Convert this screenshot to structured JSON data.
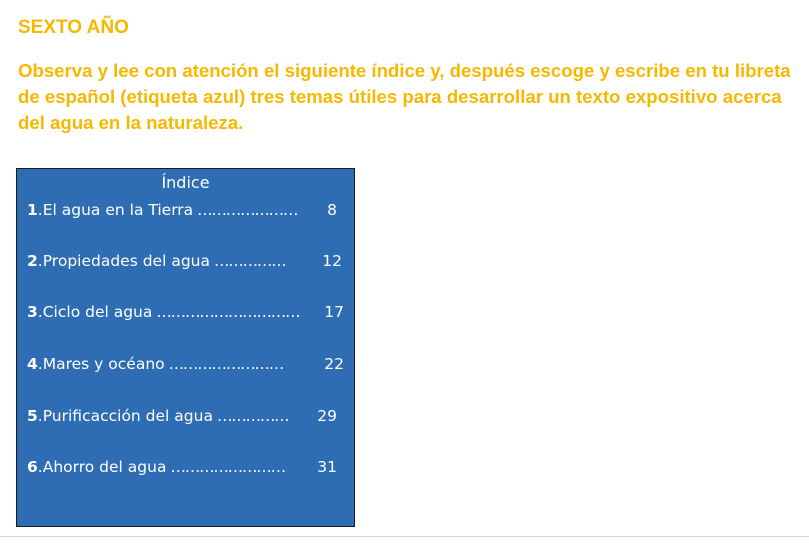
{
  "document": {
    "heading": "SEXTO AÑO",
    "instructions": "Observa y lee con atención el siguiente índice y, después escoge y escribe en tu libreta de español (etiqueta azul) tres temas útiles para desarrollar un texto expositivo acerca del agua en la naturaleza.",
    "index": {
      "title": "Índice",
      "items": [
        {
          "number": "1",
          "title": "El agua en la Tierra",
          "dots": "…………………",
          "page": "8"
        },
        {
          "number": "2",
          "title": "Propiedades del agua",
          "dots": "……………",
          "page": "12"
        },
        {
          "number": "3",
          "title": "Ciclo del agua",
          "dots": "…………………………",
          "page": "17"
        },
        {
          "number": "4",
          "title": "Mares y océano",
          "dots": "……………………",
          "page": "22"
        },
        {
          "number": "5",
          "title": "Purificacción del agua",
          "dots": "……………",
          "page": "29"
        },
        {
          "number": "6",
          "title": "Ahorro del agua",
          "dots": "……………………",
          "page": "31"
        }
      ]
    }
  },
  "colors": {
    "heading_text": "#f6b800",
    "index_background": "#2e6db4",
    "index_text": "#ffffff"
  }
}
